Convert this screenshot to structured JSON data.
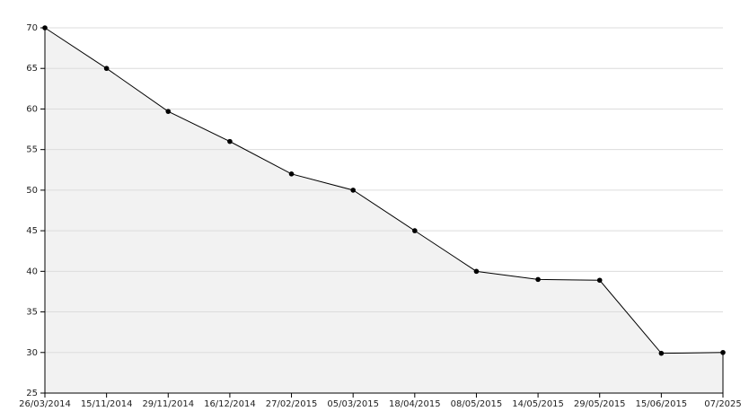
{
  "chart_data": {
    "type": "area",
    "categories": [
      "26/03/2014",
      "15/11/2014",
      "29/11/2014",
      "16/12/2014",
      "27/02/2015",
      "05/03/2015",
      "18/04/2015",
      "08/05/2015",
      "14/05/2015",
      "29/05/2015",
      "15/06/2015",
      "07/2025"
    ],
    "values": [
      70,
      65,
      59.7,
      56,
      52,
      50,
      45,
      40,
      39,
      38.9,
      29.9,
      30
    ],
    "color": "#000000",
    "fill": "#f2f2f2",
    "ylim": [
      25,
      70
    ],
    "yticks": [
      25,
      30,
      35,
      40,
      45,
      50,
      55,
      60,
      65,
      70
    ],
    "grid": true
  }
}
